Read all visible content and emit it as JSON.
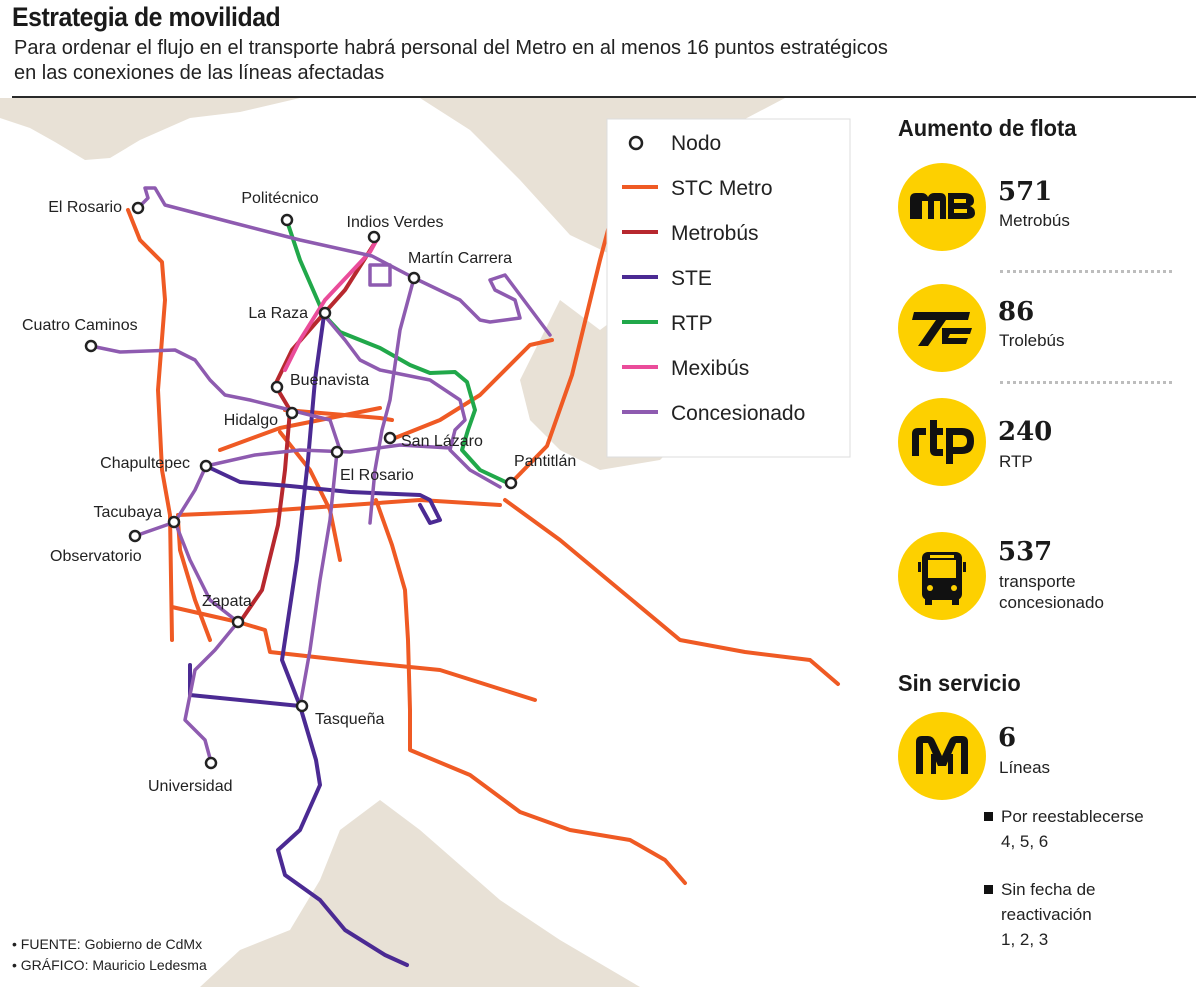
{
  "header": {
    "title": "Estrategia de movilidad",
    "subtitle_line1": "Para ordenar el flujo en el transporte habrá personal del Metro en al menos 16 puntos estratégicos",
    "subtitle_line2": "en las conexiones de las líneas afectadas"
  },
  "legend": {
    "items": [
      {
        "label": "Nodo",
        "color": "#222222",
        "kind": "node"
      },
      {
        "label": "STC Metro",
        "color": "#ef5a24",
        "kind": "line"
      },
      {
        "label": "Metrobús",
        "color": "#b7282e",
        "kind": "line"
      },
      {
        "label": "STE",
        "color": "#4b2a93",
        "kind": "line"
      },
      {
        "label": "RTP",
        "color": "#21a84a",
        "kind": "line"
      },
      {
        "label": "Mexibús",
        "color": "#ea4c9a",
        "kind": "line"
      },
      {
        "label": "Concesionado",
        "color": "#8e5bb0",
        "kind": "line"
      }
    ]
  },
  "nodes": [
    {
      "label": "El Rosario",
      "anchor": "end"
    },
    {
      "label": "Politécnico",
      "anchor": "middle"
    },
    {
      "label": "Indios Verdes",
      "anchor": "middle"
    },
    {
      "label": "Martín Carrera",
      "anchor": "start"
    },
    {
      "label": "La Raza",
      "anchor": "end"
    },
    {
      "label": "Cuatro Caminos",
      "anchor": "start"
    },
    {
      "label": "Buenavista",
      "anchor": "start"
    },
    {
      "label": "Hidalgo",
      "anchor": "end"
    },
    {
      "label": "San Lázaro",
      "anchor": "start"
    },
    {
      "label": "Chapultepec",
      "anchor": "end"
    },
    {
      "label": "El Rosario",
      "anchor": "start"
    },
    {
      "label": "Pantitlán",
      "anchor": "start"
    },
    {
      "label": "Tacubaya",
      "anchor": "end"
    },
    {
      "label": "Observatorio",
      "anchor": "start"
    },
    {
      "label": "Zapata",
      "anchor": "start"
    },
    {
      "label": "Tasqueña",
      "anchor": "start"
    },
    {
      "label": "Universidad",
      "anchor": "start"
    }
  ],
  "fleet": {
    "title": "Aumento de flota",
    "items": [
      {
        "icon": "metrobus-logo-icon",
        "number": "571",
        "label": "Metrobús"
      },
      {
        "icon": "trolebus-logo-icon",
        "number": "86",
        "label": "Trolebús"
      },
      {
        "icon": "rtp-logo-icon",
        "number": "240",
        "label": "RTP"
      },
      {
        "icon": "bus-icon",
        "number": "537",
        "label_line1": "transporte",
        "label_line2": "concesionado"
      }
    ]
  },
  "out_of_service": {
    "title": "Sin servicio",
    "icon": "metro-logo-icon",
    "number": "6",
    "label": "Líneas",
    "notes": [
      {
        "line1": "Por reestablecerse",
        "line2": "4, 5, 6"
      },
      {
        "line1": "Sin fecha de",
        "line2": "reactivación",
        "line3": "1, 2, 3"
      }
    ]
  },
  "credits": {
    "source": "• FUENTE:  Gobierno de CdMx",
    "graphic": "• GRÁFICO: Mauricio Ledesma"
  },
  "colors": {
    "metro": "#ef5a24",
    "metrobus": "#b7282e",
    "ste": "#4b2a93",
    "rtp": "#21a84a",
    "mexibus": "#ea4c9a",
    "concesionado": "#8e5bb0",
    "land": "#e8e1d6",
    "accent": "#fdd000"
  }
}
